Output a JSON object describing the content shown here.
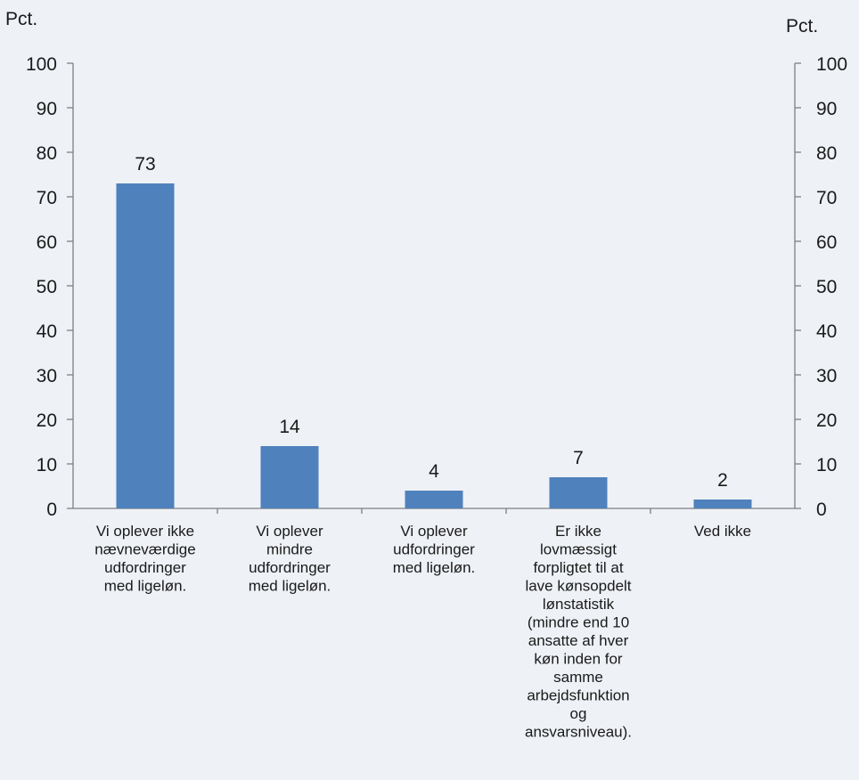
{
  "chart_data": {
    "type": "bar",
    "title": "",
    "ylabel_left": "Pct.",
    "ylabel_right": "Pct.",
    "ylim": [
      0,
      100
    ],
    "yticks": [
      0,
      10,
      20,
      30,
      40,
      50,
      60,
      70,
      80,
      90,
      100
    ],
    "grid": false,
    "legend": "none",
    "bar_color": "#4f81bd",
    "categories": [
      "Vi oplever ikke nævneværdige udfordringer med ligeløn.",
      "Vi oplever mindre udfordringer med ligeløn.",
      "Vi oplever udfordringer med ligeløn.",
      "Er ikke lovmæssigt forpligtet til at lave kønsopdelt lønstatistik (mindre end 10 ansatte af hver køn inden for samme arbejdsfunktion og ansvarsniveau).",
      "Ved ikke"
    ],
    "category_lines": [
      [
        "Vi oplever ikke",
        "nævneværdige",
        "udfordringer",
        "med ligeløn."
      ],
      [
        "Vi oplever",
        "mindre",
        "udfordringer",
        "med ligeløn."
      ],
      [
        "Vi oplever",
        "udfordringer",
        "med ligeløn."
      ],
      [
        "Er ikke",
        "lovmæssigt",
        "forpligtet til at",
        "lave kønsopdelt",
        "lønstatistik",
        "(mindre end 10",
        "ansatte af hver",
        "køn inden for",
        "samme",
        "arbejdsfunktion",
        "og",
        "ansvarsniveau)."
      ],
      [
        "Ved ikke"
      ]
    ],
    "values": [
      73,
      14,
      4,
      7,
      2
    ],
    "data_labels": [
      "73",
      "14",
      "4",
      "7",
      "2"
    ]
  }
}
